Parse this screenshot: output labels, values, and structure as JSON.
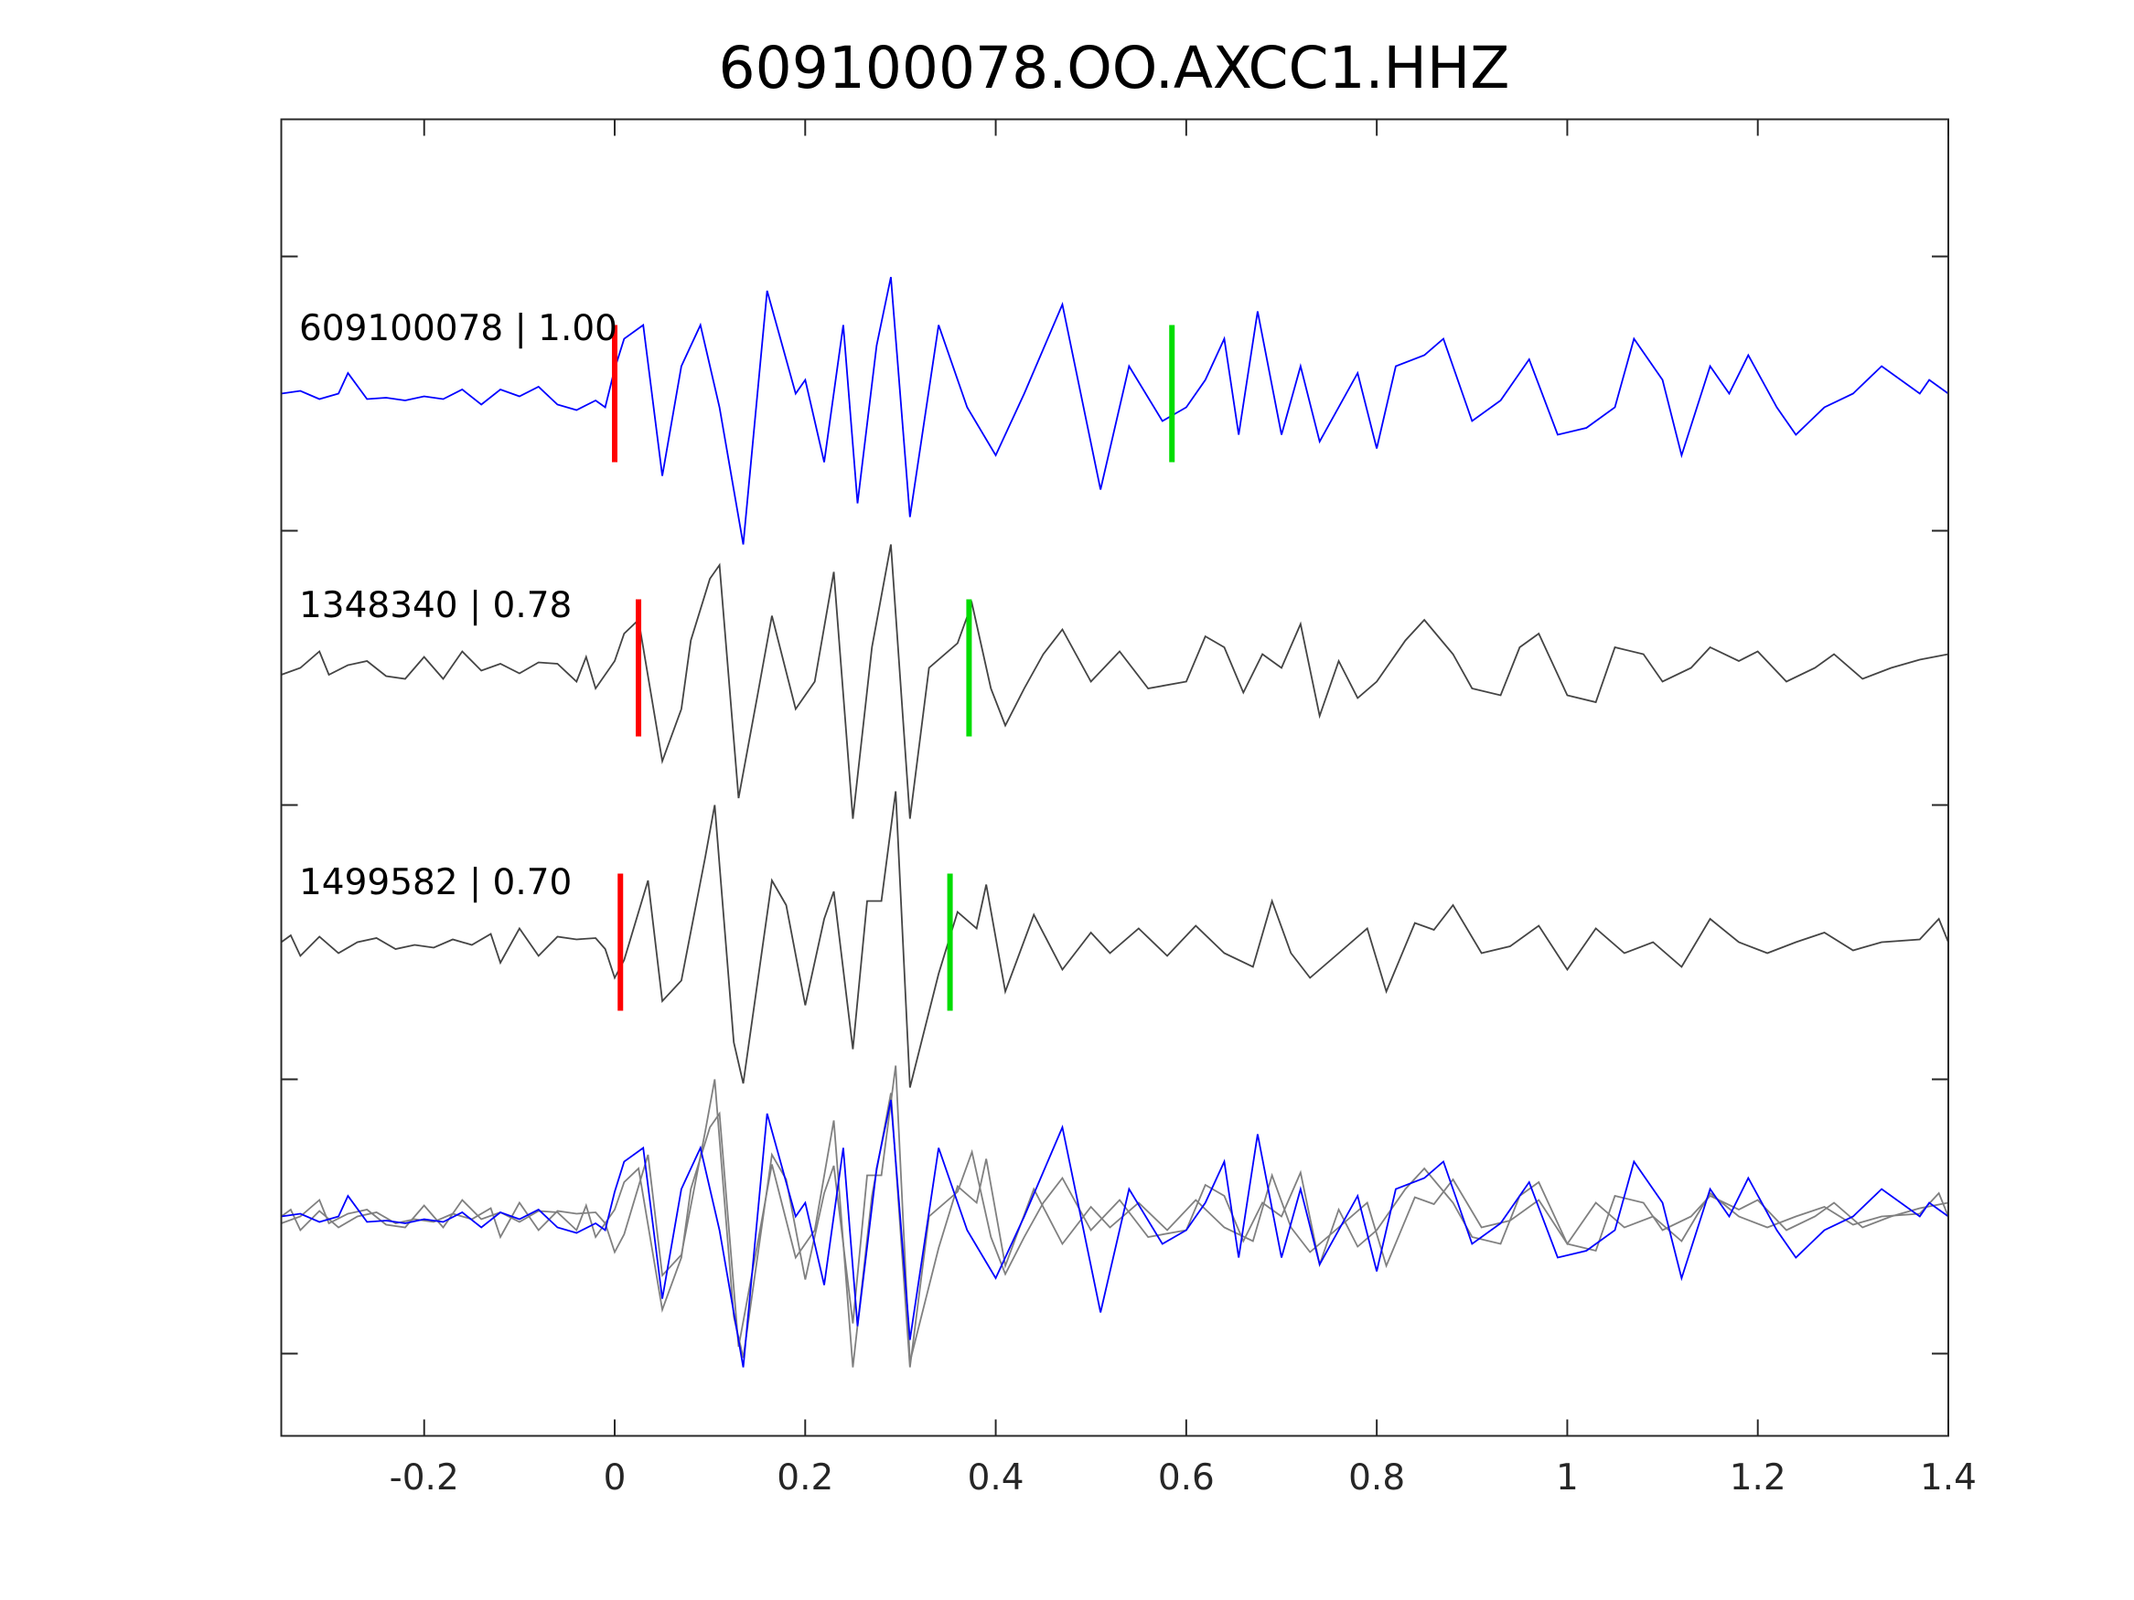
{
  "chart_data": {
    "type": "line",
    "title": "609100078.OO.AXCC1.HHZ",
    "xlabel": "",
    "ylabel": "",
    "xlim": [
      -0.35,
      1.4
    ],
    "ylim": [
      -9.6,
      0
    ],
    "xticks": [
      -0.2,
      0,
      0.2,
      0.4,
      0.6,
      0.8,
      1,
      1.2,
      1.4
    ],
    "xtick_labels": [
      "-0.2",
      "0",
      "0.2",
      "0.4",
      "0.6",
      "0.8",
      "1",
      "1.2",
      "1.4"
    ],
    "yticks": [
      -1,
      -3,
      -5,
      -7,
      -9
    ],
    "grid": false,
    "colors": {
      "primary": "#0000ff",
      "secondary": "#444444",
      "overlay_secondary": "#808080",
      "p_pick": "#ff0000",
      "s_pick": "#00dd00"
    },
    "series": [
      {
        "name": "609100078",
        "label": "609100078 | 1.00",
        "cc": 1.0,
        "offset": -2,
        "color": "#0000ff",
        "p_pick": 0.0,
        "s_pick": 0.585,
        "points": [
          [
            -0.35,
            0
          ],
          [
            -0.33,
            0.02
          ],
          [
            -0.31,
            -0.04
          ],
          [
            -0.29,
            0
          ],
          [
            -0.28,
            0.15
          ],
          [
            -0.26,
            -0.04
          ],
          [
            -0.24,
            -0.03
          ],
          [
            -0.22,
            -0.05
          ],
          [
            -0.2,
            -0.02
          ],
          [
            -0.18,
            -0.04
          ],
          [
            -0.16,
            0.03
          ],
          [
            -0.14,
            -0.08
          ],
          [
            -0.12,
            0.03
          ],
          [
            -0.1,
            -0.02
          ],
          [
            -0.08,
            0.05
          ],
          [
            -0.06,
            -0.08
          ],
          [
            -0.04,
            -0.12
          ],
          [
            -0.02,
            -0.05
          ],
          [
            -0.01,
            -0.1
          ],
          [
            0.0,
            0.18
          ],
          [
            0.01,
            0.4
          ],
          [
            0.03,
            0.5
          ],
          [
            0.05,
            -0.6
          ],
          [
            0.07,
            0.2
          ],
          [
            0.09,
            0.5
          ],
          [
            0.11,
            -0.1
          ],
          [
            0.135,
            -1.1
          ],
          [
            0.16,
            0.75
          ],
          [
            0.19,
            0
          ],
          [
            0.2,
            0.1
          ],
          [
            0.22,
            -0.5
          ],
          [
            0.24,
            0.5
          ],
          [
            0.255,
            -0.8
          ],
          [
            0.275,
            0.35
          ],
          [
            0.29,
            0.85
          ],
          [
            0.31,
            -0.9
          ],
          [
            0.34,
            0.5
          ],
          [
            0.37,
            -0.1
          ],
          [
            0.4,
            -0.45
          ],
          [
            0.43,
            0
          ],
          [
            0.47,
            0.65
          ],
          [
            0.51,
            -0.7
          ],
          [
            0.54,
            0.2
          ],
          [
            0.575,
            -0.2
          ],
          [
            0.6,
            -0.1
          ],
          [
            0.62,
            0.1
          ],
          [
            0.64,
            0.4
          ],
          [
            0.655,
            -0.3
          ],
          [
            0.675,
            0.6
          ],
          [
            0.7,
            -0.3
          ],
          [
            0.72,
            0.2
          ],
          [
            0.74,
            -0.35
          ],
          [
            0.78,
            0.15
          ],
          [
            0.8,
            -0.4
          ],
          [
            0.82,
            0.2
          ],
          [
            0.85,
            0.28
          ],
          [
            0.87,
            0.4
          ],
          [
            0.9,
            -0.2
          ],
          [
            0.93,
            -0.05
          ],
          [
            0.96,
            0.25
          ],
          [
            0.99,
            -0.3
          ],
          [
            1.02,
            -0.25
          ],
          [
            1.05,
            -0.1
          ],
          [
            1.07,
            0.4
          ],
          [
            1.1,
            0.1
          ],
          [
            1.12,
            -0.45
          ],
          [
            1.15,
            0.2
          ],
          [
            1.17,
            0
          ],
          [
            1.19,
            0.28
          ],
          [
            1.22,
            -0.1
          ],
          [
            1.24,
            -0.3
          ],
          [
            1.27,
            -0.1
          ],
          [
            1.3,
            0
          ],
          [
            1.33,
            0.2
          ],
          [
            1.37,
            0
          ],
          [
            1.38,
            0.1
          ],
          [
            1.4,
            0
          ]
        ]
      },
      {
        "name": "1348340",
        "label": "1348340 | 0.78",
        "cc": 0.78,
        "offset": -4,
        "color": "#444444",
        "p_pick": 0.025,
        "s_pick": 0.372,
        "points": [
          [
            -0.35,
            -0.05
          ],
          [
            -0.33,
            0
          ],
          [
            -0.31,
            0.12
          ],
          [
            -0.3,
            -0.05
          ],
          [
            -0.28,
            0.02
          ],
          [
            -0.26,
            0.05
          ],
          [
            -0.24,
            -0.06
          ],
          [
            -0.22,
            -0.08
          ],
          [
            -0.2,
            0.08
          ],
          [
            -0.18,
            -0.08
          ],
          [
            -0.16,
            0.12
          ],
          [
            -0.14,
            -0.02
          ],
          [
            -0.12,
            0.03
          ],
          [
            -0.1,
            -0.04
          ],
          [
            -0.08,
            0.04
          ],
          [
            -0.06,
            0.03
          ],
          [
            -0.04,
            -0.1
          ],
          [
            -0.03,
            0.08
          ],
          [
            -0.02,
            -0.15
          ],
          [
            0.0,
            0.05
          ],
          [
            0.01,
            0.25
          ],
          [
            0.025,
            0.35
          ],
          [
            0.05,
            -0.68
          ],
          [
            0.07,
            -0.3
          ],
          [
            0.08,
            0.2
          ],
          [
            0.1,
            0.65
          ],
          [
            0.11,
            0.75
          ],
          [
            0.13,
            -0.95
          ],
          [
            0.15,
            -0.2
          ],
          [
            0.165,
            0.38
          ],
          [
            0.19,
            -0.3
          ],
          [
            0.21,
            -0.1
          ],
          [
            0.23,
            0.7
          ],
          [
            0.25,
            -1.1
          ],
          [
            0.27,
            0.15
          ],
          [
            0.29,
            0.9
          ],
          [
            0.31,
            -1.1
          ],
          [
            0.33,
            0
          ],
          [
            0.36,
            0.18
          ],
          [
            0.375,
            0.47
          ],
          [
            0.395,
            -0.15
          ],
          [
            0.41,
            -0.42
          ],
          [
            0.43,
            -0.15
          ],
          [
            0.45,
            0.1
          ],
          [
            0.47,
            0.28
          ],
          [
            0.5,
            -0.1
          ],
          [
            0.53,
            0.12
          ],
          [
            0.56,
            -0.15
          ],
          [
            0.6,
            -0.1
          ],
          [
            0.62,
            0.23
          ],
          [
            0.64,
            0.15
          ],
          [
            0.66,
            -0.18
          ],
          [
            0.68,
            0.1
          ],
          [
            0.7,
            0
          ],
          [
            0.72,
            0.32
          ],
          [
            0.74,
            -0.35
          ],
          [
            0.76,
            0.05
          ],
          [
            0.78,
            -0.22
          ],
          [
            0.8,
            -0.1
          ],
          [
            0.83,
            0.2
          ],
          [
            0.85,
            0.35
          ],
          [
            0.88,
            0.1
          ],
          [
            0.9,
            -0.15
          ],
          [
            0.93,
            -0.2
          ],
          [
            0.95,
            0.15
          ],
          [
            0.97,
            0.25
          ],
          [
            1.0,
            -0.2
          ],
          [
            1.03,
            -0.25
          ],
          [
            1.05,
            0.15
          ],
          [
            1.08,
            0.1
          ],
          [
            1.1,
            -0.1
          ],
          [
            1.13,
            0
          ],
          [
            1.15,
            0.15
          ],
          [
            1.18,
            0.05
          ],
          [
            1.2,
            0.12
          ],
          [
            1.23,
            -0.1
          ],
          [
            1.26,
            0
          ],
          [
            1.28,
            0.1
          ],
          [
            1.31,
            -0.08
          ],
          [
            1.34,
            0
          ],
          [
            1.37,
            0.06
          ],
          [
            1.4,
            0.1
          ]
        ]
      },
      {
        "name": "1499582",
        "label": "1499582 | 0.70",
        "cc": 0.7,
        "offset": -6,
        "color": "#444444",
        "p_pick": 0.006,
        "s_pick": 0.352,
        "points": [
          [
            -0.35,
            0
          ],
          [
            -0.34,
            0.05
          ],
          [
            -0.33,
            -0.1
          ],
          [
            -0.31,
            0.04
          ],
          [
            -0.29,
            -0.08
          ],
          [
            -0.27,
            0
          ],
          [
            -0.25,
            0.03
          ],
          [
            -0.23,
            -0.05
          ],
          [
            -0.21,
            -0.02
          ],
          [
            -0.19,
            -0.04
          ],
          [
            -0.17,
            0.02
          ],
          [
            -0.15,
            -0.02
          ],
          [
            -0.13,
            0.06
          ],
          [
            -0.12,
            -0.15
          ],
          [
            -0.1,
            0.1
          ],
          [
            -0.08,
            -0.1
          ],
          [
            -0.06,
            0.04
          ],
          [
            -0.04,
            0.02
          ],
          [
            -0.02,
            0.03
          ],
          [
            -0.01,
            -0.05
          ],
          [
            0.0,
            -0.26
          ],
          [
            0.01,
            -0.13
          ],
          [
            0.035,
            0.45
          ],
          [
            0.05,
            -0.43
          ],
          [
            0.07,
            -0.28
          ],
          [
            0.095,
            0.62
          ],
          [
            0.105,
            1.0
          ],
          [
            0.125,
            -0.73
          ],
          [
            0.135,
            -1.03
          ],
          [
            0.165,
            0.45
          ],
          [
            0.18,
            0.27
          ],
          [
            0.2,
            -0.46
          ],
          [
            0.22,
            0.17
          ],
          [
            0.23,
            0.37
          ],
          [
            0.25,
            -0.78
          ],
          [
            0.265,
            0.3
          ],
          [
            0.28,
            0.3
          ],
          [
            0.295,
            1.1
          ],
          [
            0.31,
            -1.06
          ],
          [
            0.34,
            -0.23
          ],
          [
            0.36,
            0.22
          ],
          [
            0.38,
            0.1
          ],
          [
            0.39,
            0.42
          ],
          [
            0.41,
            -0.36
          ],
          [
            0.44,
            0.2
          ],
          [
            0.47,
            -0.2
          ],
          [
            0.5,
            0.07
          ],
          [
            0.52,
            -0.08
          ],
          [
            0.55,
            0.1
          ],
          [
            0.58,
            -0.1
          ],
          [
            0.61,
            0.12
          ],
          [
            0.64,
            -0.08
          ],
          [
            0.67,
            -0.18
          ],
          [
            0.69,
            0.3
          ],
          [
            0.71,
            -0.08
          ],
          [
            0.73,
            -0.26
          ],
          [
            0.76,
            -0.08
          ],
          [
            0.79,
            0.1
          ],
          [
            0.81,
            -0.36
          ],
          [
            0.84,
            0.14
          ],
          [
            0.86,
            0.09
          ],
          [
            0.88,
            0.27
          ],
          [
            0.91,
            -0.08
          ],
          [
            0.94,
            -0.03
          ],
          [
            0.97,
            0.12
          ],
          [
            1.0,
            -0.2
          ],
          [
            1.03,
            0.1
          ],
          [
            1.06,
            -0.08
          ],
          [
            1.09,
            0
          ],
          [
            1.12,
            -0.18
          ],
          [
            1.15,
            0.17
          ],
          [
            1.18,
            0
          ],
          [
            1.21,
            -0.08
          ],
          [
            1.24,
            0
          ],
          [
            1.27,
            0.07
          ],
          [
            1.3,
            -0.06
          ],
          [
            1.33,
            0
          ],
          [
            1.37,
            0.02
          ],
          [
            1.39,
            0.17
          ],
          [
            1.4,
            0
          ]
        ]
      }
    ],
    "overlay": {
      "offset": -8,
      "description_series": [
        "609100078",
        "1348340",
        "1499582"
      ]
    }
  }
}
